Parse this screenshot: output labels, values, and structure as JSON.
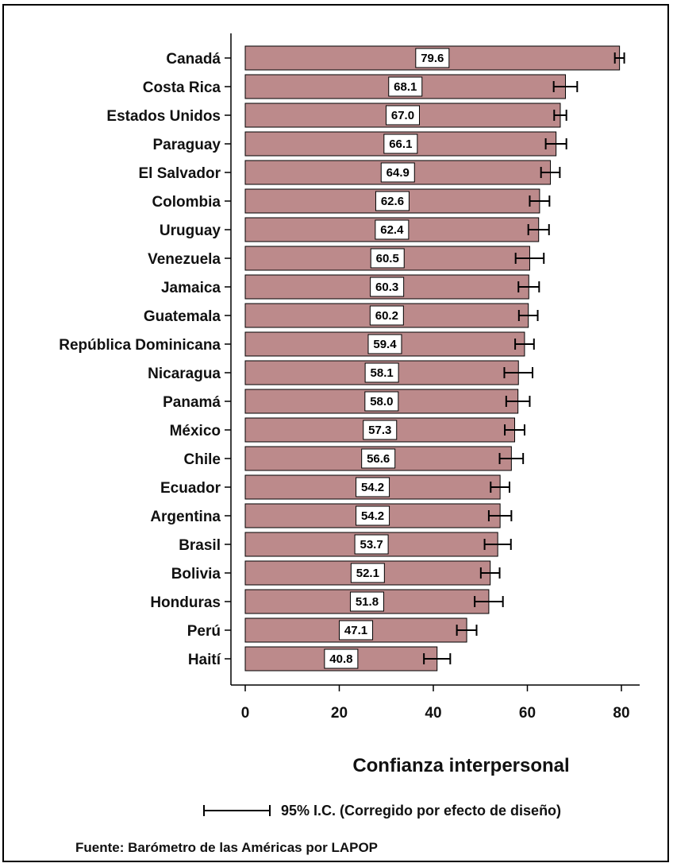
{
  "chart_data": {
    "type": "bar",
    "orientation": "horizontal",
    "categories": [
      "Canadá",
      "Costa Rica",
      "Estados Unidos",
      "Paraguay",
      "El Salvador",
      "Colombia",
      "Uruguay",
      "Venezuela",
      "Jamaica",
      "Guatemala",
      "República Dominicana",
      "Nicaragua",
      "Panamá",
      "México",
      "Chile",
      "Ecuador",
      "Argentina",
      "Brasil",
      "Bolivia",
      "Honduras",
      "Perú",
      "Haití"
    ],
    "values": [
      79.6,
      68.1,
      67.0,
      66.1,
      64.9,
      62.6,
      62.4,
      60.5,
      60.3,
      60.2,
      59.4,
      58.1,
      58.0,
      57.3,
      56.6,
      54.2,
      54.2,
      53.7,
      52.1,
      51.8,
      47.1,
      40.8
    ],
    "value_labels": [
      "79.6",
      "68.1",
      "67.0",
      "66.1",
      "64.9",
      "62.6",
      "62.4",
      "60.5",
      "60.3",
      "60.2",
      "59.4",
      "58.1",
      "58.0",
      "57.3",
      "56.6",
      "54.2",
      "54.2",
      "53.7",
      "52.1",
      "51.8",
      "47.1",
      "40.8"
    ],
    "ci_low": [
      78.6,
      65.6,
      65.7,
      63.9,
      62.9,
      60.5,
      60.2,
      57.5,
      58.1,
      58.2,
      57.4,
      55.1,
      55.5,
      55.2,
      54.1,
      52.2,
      51.8,
      50.9,
      50.1,
      48.8,
      45.0,
      38.0
    ],
    "ci_high": [
      80.6,
      70.6,
      68.3,
      68.3,
      66.9,
      64.7,
      64.6,
      63.5,
      62.5,
      62.2,
      61.4,
      61.1,
      60.5,
      59.4,
      59.1,
      56.2,
      56.6,
      56.5,
      54.1,
      54.8,
      49.2,
      43.6
    ],
    "xlabel": "Confianza interpersonal",
    "xlim": [
      0,
      84
    ],
    "xticks": [
      0,
      20,
      40,
      60,
      80
    ],
    "xtick_labels": [
      "0",
      "20",
      "40",
      "60",
      "80"
    ],
    "bar_color": "#bc8a8b",
    "legend": {
      "text": "95% I.C. (Corregido por efecto de diseño)",
      "placement": "bottom-right"
    },
    "source": "Fuente: Barómetro de las Américas por LAPOP",
    "grid": false
  }
}
